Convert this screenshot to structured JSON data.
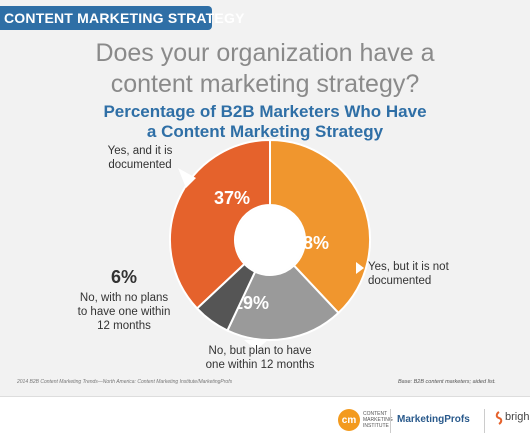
{
  "banner": {
    "text": "CONTENT MARKETING STRATEGY",
    "color": "#2f6fa6"
  },
  "headline": {
    "line1": "Does your organization have a",
    "line2": "content marketing strategy?"
  },
  "chart_data": {
    "type": "pie",
    "title_line1": "Percentage of B2B Marketers Who Have",
    "title_line2": "a Content Marketing Strategy",
    "donut": true,
    "slices": [
      {
        "label_lines": [
          "Yes, and it is",
          "documented"
        ],
        "value": 37,
        "value_label": "37%",
        "color": "#e5622c"
      },
      {
        "label_lines": [
          "Yes, but it is not",
          "documented"
        ],
        "value": 38,
        "value_label": "38%",
        "color": "#f0962e"
      },
      {
        "label_lines": [
          "No, but plan to have",
          "one within 12 months"
        ],
        "value": 19,
        "value_label": "19%",
        "color": "#9a9a9a"
      },
      {
        "label_lines": [
          "No, with no plans",
          "to have one within",
          "12 months"
        ],
        "value": 6,
        "value_label": "6%",
        "color": "#555555"
      }
    ]
  },
  "footer": {
    "source": "2014 B2B Content Marketing Trends—North America: Content Marketing Institute/MarketingProfs",
    "base": "Base: B2B content marketers; aided list.",
    "cmi_mark": "cm",
    "cmi_text": "CONTENT MARKETING INSTITUTE",
    "mp_text": "MarketingProfs",
    "bright_text": "brigh"
  }
}
